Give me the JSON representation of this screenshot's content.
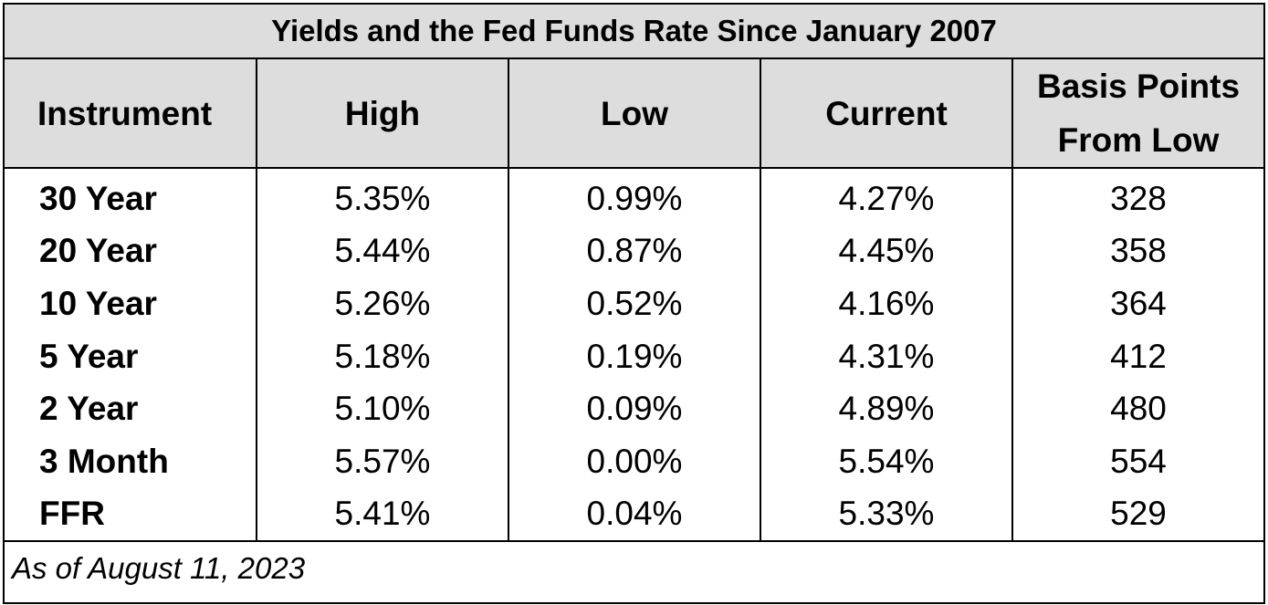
{
  "chart_data": {
    "type": "table",
    "title": "Yields and the Fed Funds Rate Since January 2007",
    "columns": [
      {
        "lines": [
          "Instrument"
        ]
      },
      {
        "lines": [
          "High"
        ]
      },
      {
        "lines": [
          "Low"
        ]
      },
      {
        "lines": [
          "Current"
        ]
      },
      {
        "lines": [
          "Basis Points",
          "From Low"
        ]
      }
    ],
    "rows": [
      [
        "30 Year",
        "5.35%",
        "0.99%",
        "4.27%",
        "328"
      ],
      [
        "20 Year",
        "5.44%",
        "0.87%",
        "4.45%",
        "358"
      ],
      [
        "10 Year",
        "5.26%",
        "0.52%",
        "4.16%",
        "364"
      ],
      [
        "5 Year",
        "5.18%",
        "0.19%",
        "4.31%",
        "412"
      ],
      [
        "2 Year",
        "5.10%",
        "0.09%",
        "4.89%",
        "480"
      ],
      [
        "3 Month",
        "5.57%",
        "0.00%",
        "5.54%",
        "554"
      ],
      [
        "FFR",
        "5.41%",
        "0.04%",
        "5.33%",
        "529"
      ]
    ],
    "footnote": "As of August 11, 2023",
    "colors": {
      "header_fill": "#dddddd",
      "body_fill": "#ffffff",
      "border": "#000000"
    }
  }
}
